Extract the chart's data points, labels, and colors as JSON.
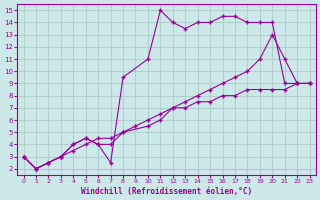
{
  "xlabel": "Windchill (Refroidissement éolien,°C)",
  "xlim": [
    -0.5,
    23.5
  ],
  "ylim": [
    1.5,
    15.5
  ],
  "xticks": [
    0,
    1,
    2,
    3,
    4,
    5,
    6,
    7,
    8,
    9,
    10,
    11,
    12,
    13,
    14,
    15,
    16,
    17,
    18,
    19,
    20,
    21,
    22,
    23
  ],
  "yticks": [
    2,
    3,
    4,
    5,
    6,
    7,
    8,
    9,
    10,
    11,
    12,
    13,
    14,
    15
  ],
  "line_color": "#990099",
  "bg_color": "#cce8e8",
  "grid_color": "#b0d0d0",
  "lines": [
    {
      "x": [
        0,
        1,
        2,
        3,
        4,
        5,
        6,
        7,
        8,
        10,
        11,
        12,
        13,
        14,
        15,
        16,
        17,
        18,
        19,
        20,
        21,
        22,
        23
      ],
      "y": [
        3,
        2,
        2.5,
        3,
        4,
        4.5,
        4,
        2.5,
        9.5,
        11,
        15,
        14,
        13.5,
        14,
        14,
        14.5,
        14.5,
        14,
        14,
        14,
        9,
        9,
        9
      ]
    },
    {
      "x": [
        0,
        1,
        2,
        3,
        4,
        5,
        6,
        7,
        8,
        9,
        10,
        11,
        12,
        13,
        14,
        15,
        16,
        17,
        18,
        19,
        20,
        21,
        22,
        23
      ],
      "y": [
        3,
        2,
        2.5,
        3,
        3.5,
        4,
        4.5,
        4.5,
        5,
        5.5,
        6,
        6.5,
        7,
        7,
        7.5,
        7.5,
        8,
        8,
        8.5,
        8.5,
        8.5,
        8.5,
        9,
        9
      ]
    },
    {
      "x": [
        0,
        1,
        2,
        3,
        4,
        5,
        6,
        7,
        8,
        10,
        11,
        12,
        13,
        14,
        15,
        16,
        17,
        18,
        19,
        20,
        21,
        22,
        23
      ],
      "y": [
        3,
        2,
        2.5,
        3,
        4,
        4.5,
        4,
        4,
        5,
        5.5,
        6,
        7,
        7.5,
        8,
        8.5,
        9,
        9.5,
        10,
        11,
        13,
        11,
        9,
        9
      ]
    }
  ]
}
